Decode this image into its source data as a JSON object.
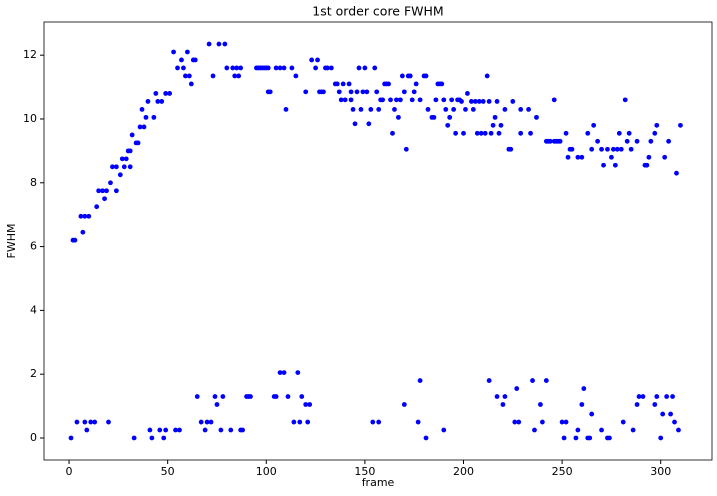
{
  "chart_data": {
    "type": "scatter",
    "title": "1st order core FWHM",
    "x_label": "frame",
    "y_label": "FWHM",
    "xlim": [
      -12.7,
      326
    ],
    "ylim": [
      -0.69,
      13.04
    ],
    "xticks": [
      0,
      50,
      100,
      150,
      200,
      250,
      300
    ],
    "yticks": [
      0,
      2,
      4,
      6,
      8,
      10,
      12
    ],
    "grid": false,
    "series": [
      {
        "color": "#0000ff",
        "x": [
          2,
          3,
          6,
          7,
          8,
          10,
          14,
          15,
          17,
          18,
          19,
          21,
          22,
          24,
          24,
          26,
          27,
          28,
          29,
          30,
          31,
          31,
          32,
          34,
          35,
          36,
          37,
          38,
          39,
          40,
          43,
          44,
          45,
          47,
          49,
          51,
          53,
          55,
          57,
          58,
          59,
          60,
          61,
          62,
          63,
          64,
          71,
          73,
          76,
          79,
          80,
          83,
          84,
          85,
          86,
          87,
          95,
          96,
          97,
          98,
          99,
          100,
          101,
          101,
          102,
          105,
          107,
          109,
          110,
          113,
          115,
          120,
          123,
          125,
          126,
          127,
          128,
          129,
          130,
          131,
          133,
          135,
          136,
          137,
          138,
          139,
          140,
          142,
          143,
          143,
          144,
          145,
          146,
          147,
          148,
          149,
          150,
          151,
          152,
          153,
          155,
          156,
          157,
          158,
          159,
          160,
          161,
          162,
          163,
          164,
          165,
          166,
          167,
          168,
          169,
          170,
          171,
          172,
          173,
          174,
          175,
          176,
          178,
          180,
          181,
          182,
          184,
          185,
          186,
          187,
          188,
          189,
          190,
          191,
          192,
          193,
          194,
          195,
          196,
          197,
          198,
          199,
          200,
          201,
          202,
          204,
          205,
          206,
          207,
          208,
          209,
          210,
          211,
          212,
          213,
          214,
          215,
          216,
          217,
          218,
          219,
          221,
          223,
          224,
          225,
          229,
          229,
          233,
          234,
          237,
          242,
          243,
          244,
          246,
          246,
          247,
          248,
          249,
          252,
          253,
          254,
          255,
          258,
          260,
          263,
          265,
          266,
          268,
          270,
          271,
          273,
          275,
          276,
          277,
          278,
          279,
          280,
          282,
          283,
          284,
          285,
          288,
          292,
          293,
          294,
          295,
          297,
          298,
          302,
          304,
          308,
          310,
          1,
          4,
          8,
          9,
          11,
          13,
          20,
          33,
          41,
          42,
          46,
          48,
          49,
          54,
          56,
          65,
          67,
          69,
          70,
          72,
          74,
          75,
          77,
          78,
          82,
          87,
          88,
          90,
          91,
          92,
          104,
          105,
          107,
          109,
          111,
          114,
          116,
          117,
          118,
          120,
          121,
          122,
          154,
          157,
          170,
          177,
          178,
          181,
          190,
          213,
          217,
          220,
          221,
          226,
          227,
          228,
          235,
          236,
          239,
          240,
          242,
          250,
          251,
          252,
          257,
          258,
          260,
          261,
          263,
          264,
          265,
          270,
          273,
          274,
          281,
          286,
          288,
          289,
          291,
          297,
          298,
          300,
          301,
          303,
          305,
          306,
          307,
          309
        ],
        "values": [
          6.2,
          6.2,
          6.95,
          6.45,
          6.95,
          6.95,
          7.25,
          7.75,
          7.75,
          7.5,
          7.75,
          8.0,
          8.5,
          8.5,
          7.75,
          8.25,
          8.75,
          8.5,
          8.75,
          9.0,
          9.0,
          8.5,
          9.5,
          9.25,
          9.25,
          9.75,
          10.3,
          9.75,
          10.05,
          10.55,
          10.05,
          10.8,
          10.55,
          10.55,
          10.8,
          10.8,
          12.1,
          11.6,
          11.85,
          11.6,
          11.35,
          12.1,
          11.35,
          11.1,
          11.85,
          11.85,
          12.35,
          11.35,
          12.35,
          12.35,
          11.6,
          11.6,
          11.35,
          11.6,
          11.35,
          11.6,
          11.6,
          11.6,
          11.6,
          11.6,
          11.6,
          11.6,
          11.6,
          10.85,
          10.85,
          11.6,
          11.6,
          11.6,
          10.3,
          11.6,
          11.35,
          10.85,
          11.85,
          11.6,
          11.85,
          10.85,
          10.85,
          10.85,
          11.6,
          11.6,
          11.6,
          11.1,
          11.1,
          10.85,
          10.6,
          11.1,
          10.6,
          11.1,
          10.6,
          10.85,
          10.3,
          9.85,
          10.85,
          11.6,
          10.3,
          10.85,
          11.6,
          10.85,
          9.85,
          10.3,
          11.6,
          10.85,
          10.3,
          10.6,
          10.6,
          11.1,
          11.1,
          11.1,
          10.6,
          9.55,
          10.3,
          10.6,
          10.05,
          10.6,
          11.35,
          10.85,
          9.05,
          11.35,
          11.35,
          10.6,
          10.85,
          11.1,
          10.6,
          11.35,
          11.35,
          10.3,
          10.05,
          10.05,
          10.6,
          11.1,
          11.1,
          11.1,
          10.6,
          10.3,
          9.8,
          10.05,
          10.6,
          10.3,
          9.55,
          10.6,
          10.6,
          10.55,
          9.55,
          10.3,
          10.8,
          10.55,
          10.3,
          10.55,
          9.55,
          10.55,
          9.55,
          10.55,
          9.55,
          11.35,
          10.55,
          9.55,
          9.8,
          10.05,
          10.55,
          9.55,
          9.8,
          10.3,
          9.05,
          9.05,
          10.55,
          10.3,
          9.55,
          10.3,
          9.55,
          10.05,
          9.3,
          9.3,
          9.3,
          10.6,
          9.3,
          9.3,
          9.3,
          9.3,
          9.55,
          8.8,
          9.05,
          9.05,
          8.8,
          8.8,
          9.55,
          9.05,
          9.8,
          9.3,
          9.05,
          8.55,
          9.05,
          8.8,
          9.05,
          8.55,
          9.05,
          9.55,
          9.05,
          10.6,
          9.3,
          9.55,
          9.05,
          9.3,
          8.55,
          8.55,
          8.8,
          9.3,
          9.55,
          9.8,
          8.8,
          9.3,
          8.3,
          9.8,
          0,
          0.5,
          0.5,
          0.25,
          0.5,
          0.5,
          0.5,
          0,
          0.25,
          0,
          0.25,
          0,
          0.25,
          0.25,
          0.25,
          1.3,
          0.5,
          0.25,
          0.5,
          0.5,
          1.3,
          1.05,
          0.25,
          1.3,
          0.25,
          0.25,
          0.25,
          1.3,
          1.3,
          1.3,
          1.3,
          1.3,
          2.05,
          2.05,
          1.3,
          0.5,
          2.05,
          0.5,
          1.3,
          1.05,
          0.5,
          1.05,
          0.5,
          0.5,
          1.05,
          0.5,
          1.8,
          0,
          0.25,
          1.8,
          1.3,
          1.05,
          1.3,
          0.5,
          1.55,
          0.5,
          1.8,
          0.25,
          1.05,
          0.5,
          1.8,
          0.5,
          0,
          0.5,
          0,
          0.25,
          1.05,
          1.55,
          0,
          0,
          0.75,
          0.25,
          0,
          0,
          0.5,
          0.25,
          1.05,
          1.3,
          1.3,
          1.05,
          1.3,
          0,
          0.75,
          1.3,
          0.75,
          1.3,
          0.5,
          0.25
        ]
      }
    ]
  }
}
